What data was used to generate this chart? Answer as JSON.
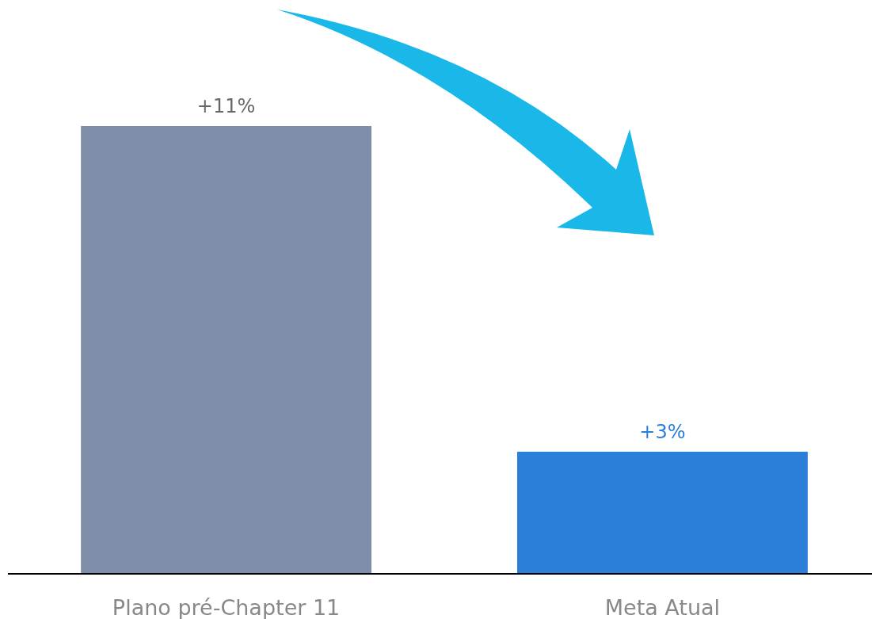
{
  "chart_data": {
    "type": "bar",
    "categories": [
      "Plano pré-Chapter 11",
      "Meta Atual"
    ],
    "values": [
      11,
      3
    ],
    "colors": [
      "#7f8ea8",
      "#2b7fd8"
    ],
    "value_labels": [
      "+11%",
      "+3%"
    ]
  }
}
